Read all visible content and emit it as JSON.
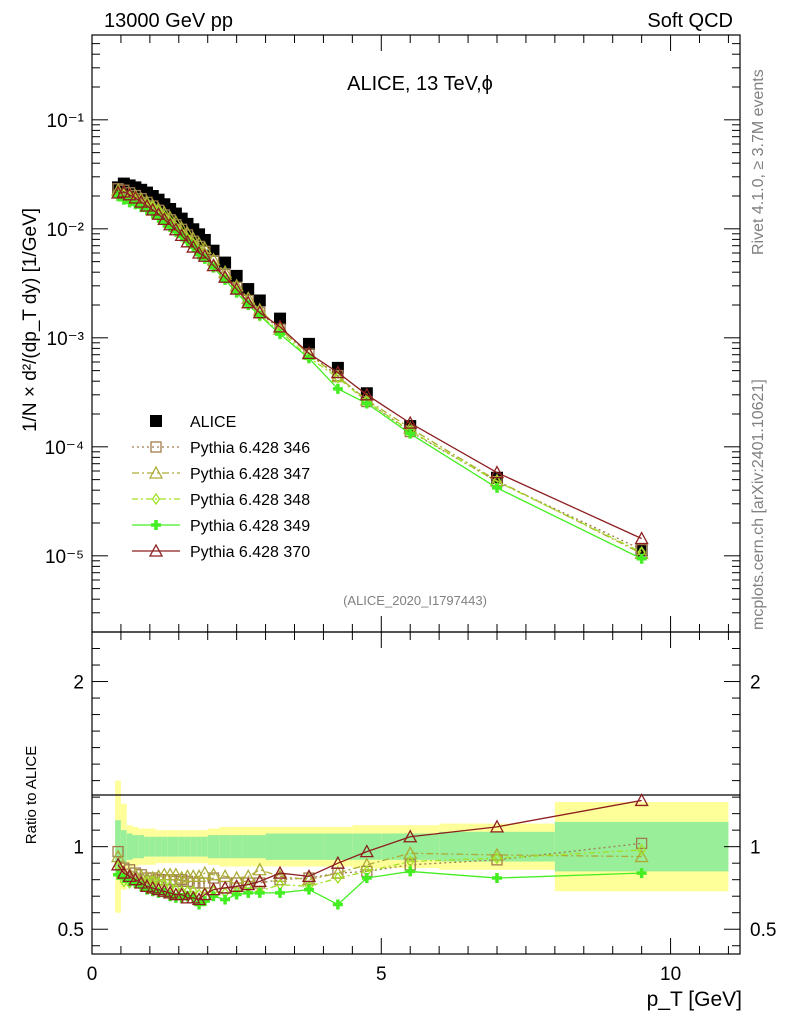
{
  "header": {
    "left": "13000 GeV pp",
    "right": "Soft QCD"
  },
  "side": {
    "rivet": "Rivet 4.1.0, ≥ 3.7M events",
    "mcplots": "mcplots.cern.ch [arXiv:2401.10621]"
  },
  "chart_data": [
    {
      "type": "scatter",
      "title": "ALICE, 13 TeV,ϕ",
      "watermark": "(ALICE_2020_I1797443)",
      "ylabel": "1/N × d²/(dp_T dy) [1/GeV]",
      "xlabel": "p_T [GeV]",
      "yscale": "log",
      "xlim": [
        0,
        11.2
      ],
      "ylim": [
        2e-06,
        0.6
      ],
      "ytick_labels": [
        "10⁻⁵",
        "10⁻⁴",
        "10⁻³",
        "10⁻²",
        "10⁻¹"
      ],
      "x": [
        0.45,
        0.55,
        0.65,
        0.75,
        0.85,
        0.95,
        1.05,
        1.15,
        1.25,
        1.35,
        1.45,
        1.55,
        1.65,
        1.75,
        1.85,
        1.95,
        2.1,
        2.3,
        2.5,
        2.7,
        2.9,
        3.25,
        3.75,
        4.25,
        4.75,
        5.5,
        7.0,
        9.5
      ],
      "series": [
        {
          "name": "ALICE",
          "color": "#000000",
          "marker": "square-filled",
          "values": [
            0.024,
            0.026,
            0.025,
            0.024,
            0.0228,
            0.0215,
            0.02,
            0.0185,
            0.0168,
            0.0152,
            0.0138,
            0.0124,
            0.0111,
            0.0099,
            0.0089,
            0.0079,
            0.0063,
            0.0049,
            0.0037,
            0.0028,
            0.0022,
            0.0015,
            0.00088,
            0.00053,
            0.00031,
            0.000155,
            5.2e-05,
            1.12e-05
          ]
        },
        {
          "name": "Pythia 6.428 346",
          "color": "#a07c4c",
          "marker": "square-open",
          "values": [
            0.0233,
            0.0226,
            0.0214,
            0.0202,
            0.0189,
            0.0175,
            0.0162,
            0.0148,
            0.0134,
            0.0121,
            0.0109,
            0.0099,
            0.0088,
            0.0077,
            0.0069,
            0.0062,
            0.0051,
            0.0038,
            0.0029,
            0.0022,
            0.0017,
            0.0012,
            0.00071,
            0.00045,
            0.00026,
            0.000138,
            4.8e-05,
            1.14e-05
          ]
        },
        {
          "name": "Pythia 6.428 347",
          "color": "#acac36",
          "marker": "triangle-open",
          "values": [
            0.0226,
            0.0218,
            0.0208,
            0.0199,
            0.0187,
            0.0175,
            0.0163,
            0.0151,
            0.014,
            0.0126,
            0.0115,
            0.0101,
            0.0091,
            0.0081,
            0.0073,
            0.0066,
            0.0052,
            0.004,
            0.003,
            0.0023,
            0.0018,
            0.0012,
            0.00071,
            0.00044,
            0.00027,
            0.000148,
            4.9e-05,
            1.05e-05
          ]
        },
        {
          "name": "Pythia 6.428 348",
          "color": "#a0e024",
          "marker": "diamond-open",
          "values": [
            0.0212,
            0.0205,
            0.0196,
            0.0188,
            0.0179,
            0.0169,
            0.0158,
            0.0145,
            0.013,
            0.0116,
            0.0103,
            0.0091,
            0.0081,
            0.0072,
            0.0063,
            0.0057,
            0.0046,
            0.0035,
            0.0027,
            0.0021,
            0.0016,
            0.00115,
            0.00066,
            0.00043,
            0.00026,
            0.00014,
            4.8e-05,
            1.08e-05
          ]
        },
        {
          "name": "Pythia 6.428 349",
          "color": "#44ee22",
          "marker": "cross-filled",
          "values": [
            0.0199,
            0.0185,
            0.0175,
            0.0168,
            0.0158,
            0.0148,
            0.0138,
            0.0126,
            0.0114,
            0.0104,
            0.0094,
            0.0085,
            0.0076,
            0.0068,
            0.0058,
            0.0053,
            0.0044,
            0.0034,
            0.0026,
            0.002,
            0.0016,
            0.00108,
            0.00065,
            0.00034,
            0.00025,
            0.000132,
            4.2e-05,
            9.4e-06
          ]
        },
        {
          "name": "Pythia 6.428 370",
          "color": "#8c1f1f",
          "marker": "triangle-open",
          "values": [
            0.0213,
            0.0218,
            0.0205,
            0.0192,
            0.0176,
            0.0162,
            0.0149,
            0.0136,
            0.0122,
            0.0109,
            0.0098,
            0.0087,
            0.0076,
            0.0068,
            0.006,
            0.0056,
            0.0046,
            0.0036,
            0.0028,
            0.0021,
            0.0017,
            0.00126,
            0.00072,
            0.00048,
            0.0003,
            0.000165,
            5.8e-05,
            1.44e-05
          ]
        }
      ]
    },
    {
      "type": "scatter",
      "ylabel": "Ratio to ALICE",
      "xlabel": "p_T [GeV]",
      "xlim": [
        0,
        11.2
      ],
      "ylim": [
        0.35,
        2.3
      ],
      "yticks": [
        0.5,
        1,
        2
      ],
      "ytick_labels": [
        "0.5",
        "1",
        "2"
      ],
      "xticks": [
        0,
        5,
        10
      ],
      "xtick_labels": [
        "0",
        "5",
        "10"
      ],
      "band_edges": [
        0.4,
        0.5,
        0.6,
        0.7,
        0.8,
        0.9,
        1.0,
        1.1,
        1.2,
        1.3,
        1.4,
        1.5,
        1.6,
        1.7,
        1.8,
        1.9,
        2.0,
        2.2,
        2.4,
        2.6,
        2.8,
        3.0,
        3.5,
        4.0,
        4.5,
        5.0,
        6.0,
        8.0,
        11.0
      ],
      "band_stat": [
        0.16,
        0.1,
        0.08,
        0.07,
        0.07,
        0.06,
        0.06,
        0.06,
        0.06,
        0.06,
        0.06,
        0.06,
        0.06,
        0.06,
        0.06,
        0.06,
        0.07,
        0.07,
        0.07,
        0.07,
        0.07,
        0.08,
        0.08,
        0.08,
        0.08,
        0.08,
        0.09,
        0.15
      ],
      "band_total": [
        0.4,
        0.26,
        0.13,
        0.12,
        0.11,
        0.11,
        0.11,
        0.1,
        0.1,
        0.1,
        0.1,
        0.1,
        0.1,
        0.1,
        0.1,
        0.1,
        0.11,
        0.12,
        0.12,
        0.12,
        0.12,
        0.12,
        0.12,
        0.12,
        0.13,
        0.13,
        0.14,
        0.27
      ],
      "x": [
        0.45,
        0.55,
        0.65,
        0.75,
        0.85,
        0.95,
        1.05,
        1.15,
        1.25,
        1.35,
        1.45,
        1.55,
        1.65,
        1.75,
        1.85,
        1.95,
        2.1,
        2.3,
        2.5,
        2.7,
        2.9,
        3.25,
        3.75,
        4.25,
        4.75,
        5.5,
        7.0,
        9.5
      ],
      "series": [
        {
          "name": "Pythia 6.428 346",
          "color": "#a07c4c",
          "marker": "square-open",
          "values": [
            0.97,
            0.87,
            0.86,
            0.84,
            0.83,
            0.81,
            0.81,
            0.8,
            0.8,
            0.8,
            0.79,
            0.8,
            0.79,
            0.78,
            0.78,
            0.78,
            0.81,
            0.78,
            0.78,
            0.78,
            0.78,
            0.8,
            0.81,
            0.84,
            0.85,
            0.89,
            0.92,
            1.02
          ]
        },
        {
          "name": "Pythia 6.428 347",
          "color": "#acac36",
          "marker": "triangle-open",
          "values": [
            0.94,
            0.84,
            0.83,
            0.83,
            0.82,
            0.81,
            0.81,
            0.82,
            0.83,
            0.83,
            0.83,
            0.81,
            0.82,
            0.82,
            0.82,
            0.84,
            0.83,
            0.82,
            0.81,
            0.82,
            0.86,
            0.82,
            0.8,
            0.84,
            0.89,
            0.96,
            0.95,
            0.94
          ]
        },
        {
          "name": "Pythia 6.428 348",
          "color": "#a0e024",
          "marker": "diamond-open",
          "values": [
            0.88,
            0.79,
            0.78,
            0.78,
            0.79,
            0.79,
            0.79,
            0.78,
            0.77,
            0.76,
            0.74,
            0.73,
            0.73,
            0.73,
            0.71,
            0.72,
            0.73,
            0.72,
            0.73,
            0.75,
            0.73,
            0.77,
            0.76,
            0.81,
            0.85,
            0.91,
            0.93,
            0.98
          ]
        },
        {
          "name": "Pythia 6.428 349",
          "color": "#44ee22",
          "marker": "cross-filled",
          "values": [
            0.83,
            0.81,
            0.79,
            0.78,
            0.76,
            0.74,
            0.73,
            0.72,
            0.72,
            0.7,
            0.69,
            0.69,
            0.7,
            0.69,
            0.65,
            0.67,
            0.7,
            0.68,
            0.71,
            0.72,
            0.72,
            0.72,
            0.74,
            0.65,
            0.81,
            0.85,
            0.81,
            0.84
          ]
        },
        {
          "name": "Pythia 6.428 370",
          "color": "#8c1f1f",
          "marker": "triangle-open",
          "values": [
            0.89,
            0.84,
            0.82,
            0.8,
            0.78,
            0.76,
            0.75,
            0.74,
            0.73,
            0.72,
            0.71,
            0.71,
            0.69,
            0.69,
            0.68,
            0.71,
            0.74,
            0.75,
            0.76,
            0.77,
            0.79,
            0.84,
            0.82,
            0.9,
            0.97,
            1.06,
            1.12,
            1.28
          ]
        }
      ]
    }
  ]
}
